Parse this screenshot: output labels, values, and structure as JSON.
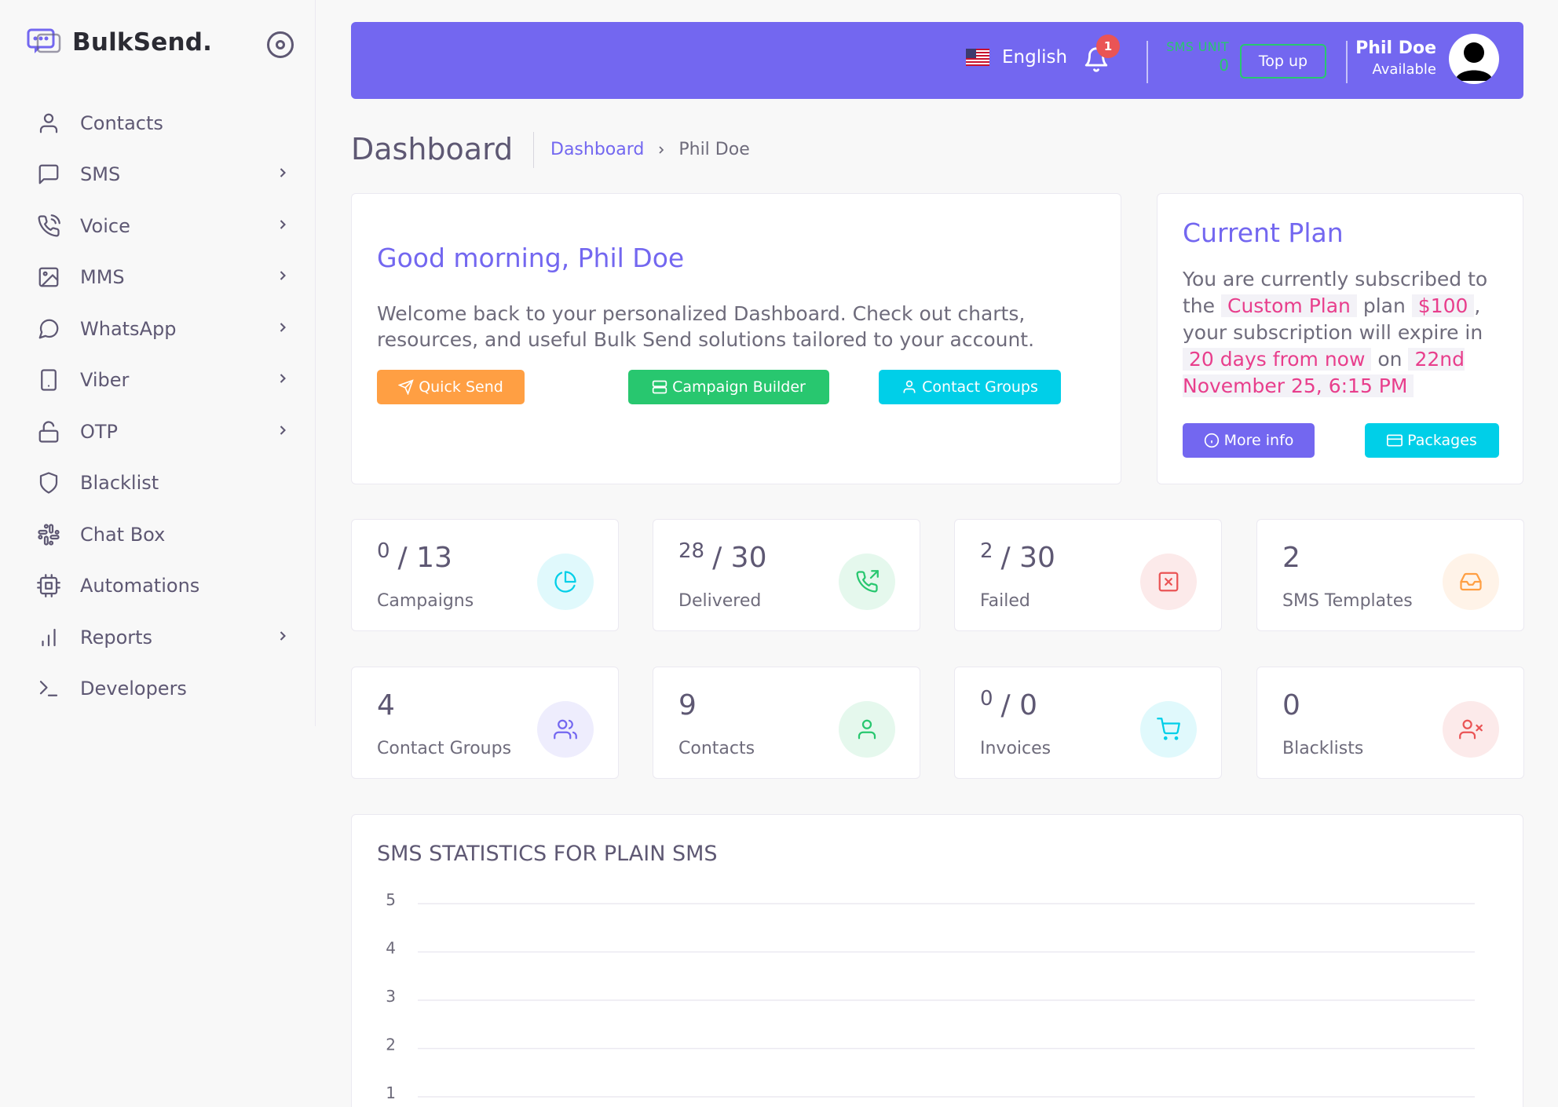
{
  "brand": {
    "name": "BulkSend."
  },
  "sidebar": {
    "items": [
      {
        "label": "Contacts",
        "icon": "user-icon",
        "has_sub": false
      },
      {
        "label": "SMS",
        "icon": "message-square-icon",
        "has_sub": true
      },
      {
        "label": "Voice",
        "icon": "phone-icon",
        "has_sub": true
      },
      {
        "label": "MMS",
        "icon": "image-icon",
        "has_sub": true
      },
      {
        "label": "WhatsApp",
        "icon": "message-circle-icon",
        "has_sub": true
      },
      {
        "label": "Viber",
        "icon": "tablet-icon",
        "has_sub": true
      },
      {
        "label": "OTP",
        "icon": "unlock-icon",
        "has_sub": true
      },
      {
        "label": "Blacklist",
        "icon": "shield-icon",
        "has_sub": false
      },
      {
        "label": "Chat Box",
        "icon": "slack-icon",
        "has_sub": false
      },
      {
        "label": "Automations",
        "icon": "cpu-icon",
        "has_sub": false
      },
      {
        "label": "Reports",
        "icon": "bar-chart-icon",
        "has_sub": true
      },
      {
        "label": "Developers",
        "icon": "terminal-icon",
        "has_sub": false
      }
    ]
  },
  "header": {
    "language": "English",
    "notification_count": "1",
    "sms_unit_label": "SMS UNIT",
    "sms_unit_value": "0",
    "topup_label": "Top up",
    "user_name": "Phil Doe",
    "user_status": "Available"
  },
  "page": {
    "title": "Dashboard",
    "breadcrumb_link": "Dashboard",
    "breadcrumb_current": "Phil Doe"
  },
  "welcome": {
    "greeting": "Good morning, Phil Doe",
    "message": "Welcome back to your personalized Dashboard. Check out charts, resources, and useful Bulk Send solutions tailored to your account.",
    "quick_send": "Quick Send",
    "campaign_builder": "Campaign Builder",
    "contact_groups": "Contact Groups"
  },
  "plan": {
    "title": "Current Plan",
    "text_1": "You are currently subscribed to the",
    "plan_name": "Custom Plan",
    "text_2": "plan",
    "price": "$100",
    "text_3": ", your subscription will expire in",
    "remaining": "20 days from now",
    "text_4": "on",
    "expiry": "22nd November 25, 6:15 PM",
    "more_info": "More info",
    "packages": "Packages"
  },
  "stats": [
    {
      "sup": "0",
      "value": "/ 13",
      "label": "Campaigns",
      "icon": "pie-chart-icon",
      "color": "#00cfe8"
    },
    {
      "sup": "28",
      "value": "/ 30",
      "label": "Delivered",
      "icon": "phone-outgoing-icon",
      "color": "#28c76f"
    },
    {
      "sup": "2",
      "value": "/ 30",
      "label": "Failed",
      "icon": "x-square-icon",
      "color": "#ea5455"
    },
    {
      "sup": "",
      "value": "2",
      "label": "SMS Templates",
      "icon": "inbox-icon",
      "color": "#ff9f43"
    },
    {
      "sup": "",
      "value": "4",
      "label": "Contact Groups",
      "icon": "users-icon",
      "color": "#7367f0"
    },
    {
      "sup": "",
      "value": "9",
      "label": "Contacts",
      "icon": "user-icon",
      "color": "#28c76f"
    },
    {
      "sup": "0",
      "value": "/ 0",
      "label": "Invoices",
      "icon": "shopping-cart-icon",
      "color": "#00cfe8"
    },
    {
      "sup": "",
      "value": "0",
      "label": "Blacklists",
      "icon": "user-x-icon",
      "color": "#ea5455"
    }
  ],
  "chart_data": {
    "type": "line",
    "title": "SMS STATISTICS FOR PLAIN SMS",
    "y_ticks": [
      "5",
      "4",
      "3",
      "2",
      "1"
    ],
    "ylim": [
      1,
      5
    ],
    "grid": true,
    "series": []
  }
}
